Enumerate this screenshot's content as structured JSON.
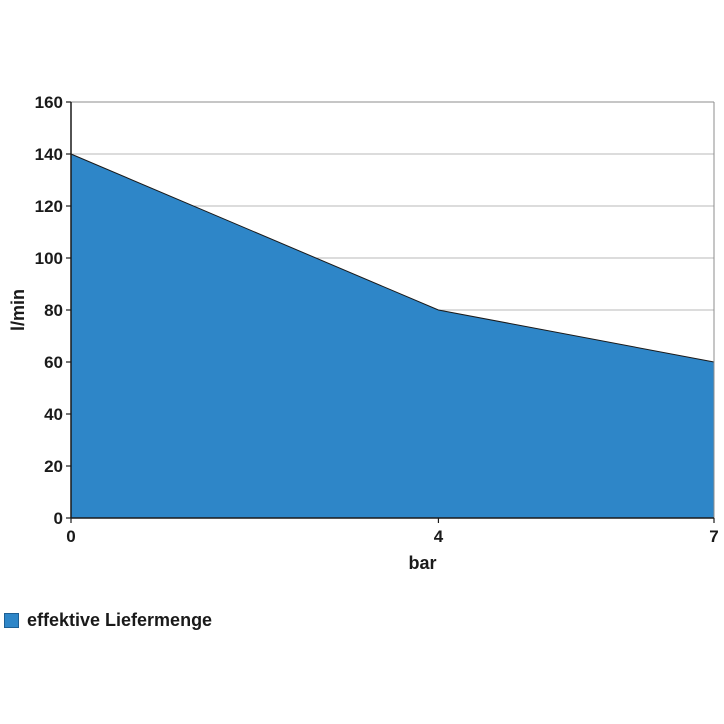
{
  "chart_data": {
    "type": "area",
    "x": [
      0,
      4,
      7
    ],
    "series": [
      {
        "name": "effektive Liefermenge",
        "values": [
          140,
          80,
          60
        ],
        "color": "#2e86c8"
      }
    ],
    "xlabel": "bar",
    "ylabel": "l/min",
    "xlim": [
      0,
      7
    ],
    "ylim": [
      0,
      160
    ],
    "xticks": [
      "0",
      "4",
      "7"
    ],
    "yticks": [
      "0",
      "20",
      "40",
      "60",
      "80",
      "100",
      "120",
      "140",
      "160"
    ],
    "grid": true,
    "legend_position": "bottom-left"
  }
}
